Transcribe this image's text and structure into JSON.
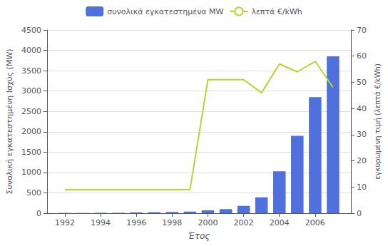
{
  "chart_data": {
    "type": "bar",
    "xlabel": "Έτος",
    "ylabel": "Συνολική εγκατεστημένη Ισχύς (MW)",
    "y2label": "εγκυρωμένη τιμή (λεπτά €/kWh)",
    "x": [
      1992,
      1993,
      1994,
      1995,
      1996,
      1997,
      1998,
      1999,
      2000,
      2001,
      2002,
      2003,
      2004,
      2005,
      2006,
      2007
    ],
    "xlim": [
      1991,
      2008
    ],
    "xticks": [
      1992,
      1994,
      1996,
      1998,
      2000,
      2002,
      2004,
      2006
    ],
    "ylim": [
      0,
      4500
    ],
    "yticks": [
      0,
      500,
      1000,
      1500,
      2000,
      2500,
      3000,
      3500,
      4000,
      4500
    ],
    "y2lim": [
      0,
      70
    ],
    "y2ticks": [
      0,
      10,
      20,
      30,
      40,
      50,
      60,
      70
    ],
    "grid": true,
    "legend": "top",
    "series": [
      {
        "name": "συνολικά εγκατεστημένα MW",
        "type": "bar",
        "values": [
          5,
          5,
          10,
          10,
          20,
          25,
          30,
          40,
          70,
          100,
          180,
          390,
          1030,
          1900,
          2850,
          3850
        ]
      },
      {
        "name": "λεπτά €/kWh",
        "type": "line",
        "axis": "y2",
        "values": [
          9,
          9,
          9,
          9,
          9,
          9,
          9,
          9,
          51,
          51,
          51,
          46,
          57,
          54,
          58,
          48
        ]
      }
    ]
  }
}
